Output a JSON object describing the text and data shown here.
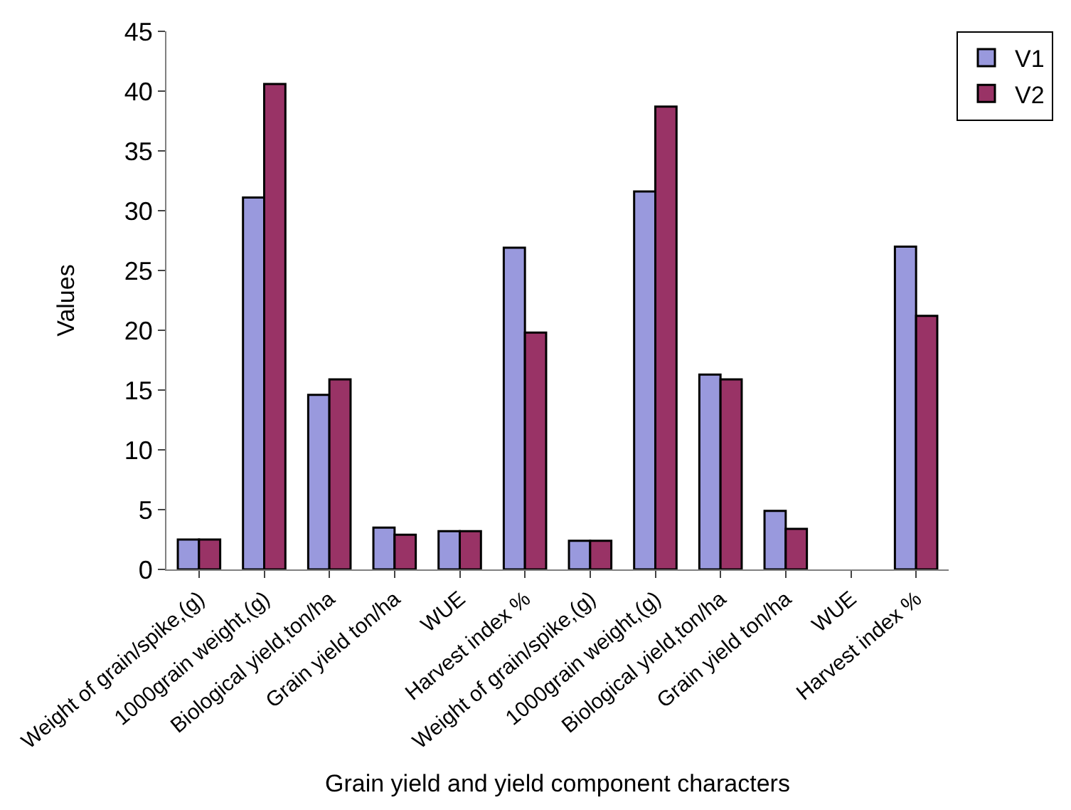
{
  "chart_data": {
    "type": "bar",
    "categories": [
      "Weight of grain/spike,(g)",
      "1000grain weight,(g)",
      "Biological yield,ton/ha",
      "Grain yield ton/ha",
      "WUE",
      "Harvest index %",
      "Weight of grain/spike,(g)",
      "1000grain weight,(g)",
      "Biological yield,ton/ha",
      "Grain yield ton/ha",
      "WUE",
      "Harvest index %"
    ],
    "series": [
      {
        "name": "V1",
        "color": "#9999dd",
        "values": [
          2.5,
          31.1,
          14.6,
          3.5,
          3.2,
          26.9,
          2.4,
          31.6,
          16.3,
          4.9,
          null,
          27
        ]
      },
      {
        "name": "V2",
        "color": "#993366",
        "values": [
          2.5,
          40.6,
          15.9,
          2.9,
          3.2,
          19.8,
          2.4,
          38.7,
          15.9,
          3.4,
          null,
          21.2
        ]
      }
    ],
    "xlabel": "Grain yield and yield component characters",
    "ylabel": "Values",
    "ylim": [
      0,
      45
    ],
    "yticks": [
      0,
      5,
      10,
      15,
      20,
      25,
      30,
      35,
      40,
      45
    ],
    "legend": "top right"
  }
}
